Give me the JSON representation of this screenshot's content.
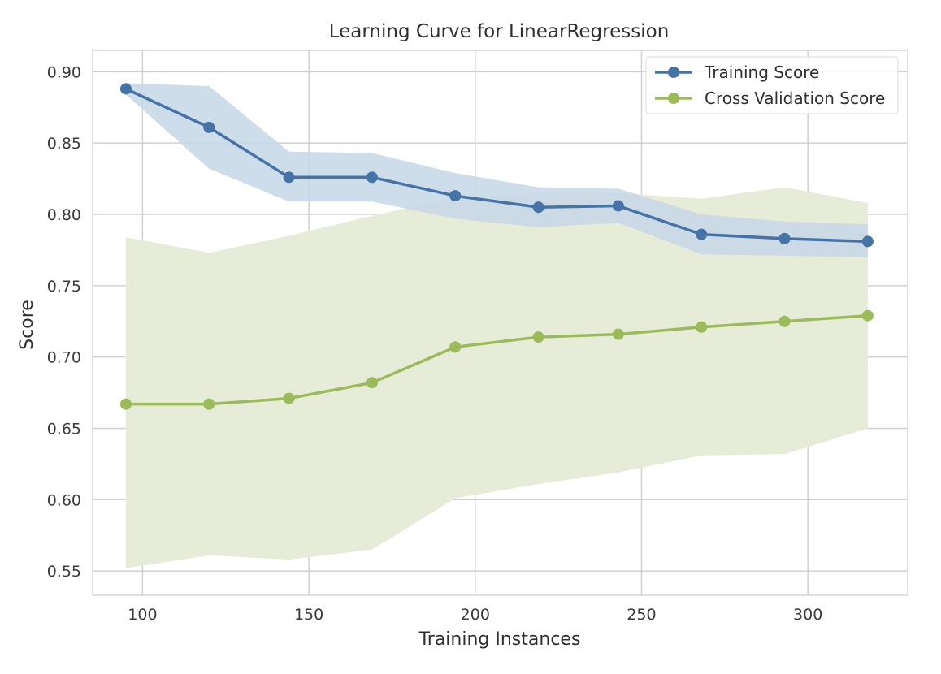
{
  "chart_data": {
    "type": "line",
    "title": "Learning Curve for LinearRegression",
    "xlabel": "Training Instances",
    "ylabel": "Score",
    "xlim": [
      85,
      330
    ],
    "ylim": [
      0.533,
      0.915
    ],
    "xticks": [
      100,
      150,
      200,
      250,
      300
    ],
    "yticks": [
      0.55,
      0.6,
      0.65,
      0.7,
      0.75,
      0.8,
      0.85,
      0.9
    ],
    "xtick_labels": [
      "100",
      "150",
      "200",
      "250",
      "300"
    ],
    "ytick_labels": [
      "0.55",
      "0.60",
      "0.65",
      "0.70",
      "0.75",
      "0.80",
      "0.85",
      "0.90"
    ],
    "grid": true,
    "legend_position": "top-right",
    "x": [
      95,
      120,
      144,
      169,
      194,
      219,
      243,
      268,
      293,
      318
    ],
    "series": [
      {
        "name": "Training Score",
        "color": "#4572a7",
        "band_color": "#c6d7e6",
        "values": [
          0.888,
          0.861,
          0.826,
          0.826,
          0.813,
          0.805,
          0.806,
          0.786,
          0.783,
          0.781
        ],
        "upper": [
          0.892,
          0.89,
          0.844,
          0.843,
          0.829,
          0.819,
          0.818,
          0.8,
          0.795,
          0.793
        ],
        "lower": [
          0.884,
          0.832,
          0.809,
          0.809,
          0.797,
          0.791,
          0.794,
          0.772,
          0.771,
          0.77
        ]
      },
      {
        "name": "Cross Validation Score",
        "color": "#9bbb59",
        "band_color": "#e6ecd8",
        "values": [
          0.667,
          0.667,
          0.671,
          0.682,
          0.707,
          0.714,
          0.716,
          0.721,
          0.725,
          0.729
        ],
        "upper": [
          0.784,
          0.773,
          0.785,
          0.799,
          0.812,
          0.815,
          0.815,
          0.811,
          0.819,
          0.808
        ],
        "lower": [
          0.552,
          0.561,
          0.558,
          0.565,
          0.601,
          0.611,
          0.619,
          0.631,
          0.632,
          0.65
        ]
      }
    ]
  }
}
